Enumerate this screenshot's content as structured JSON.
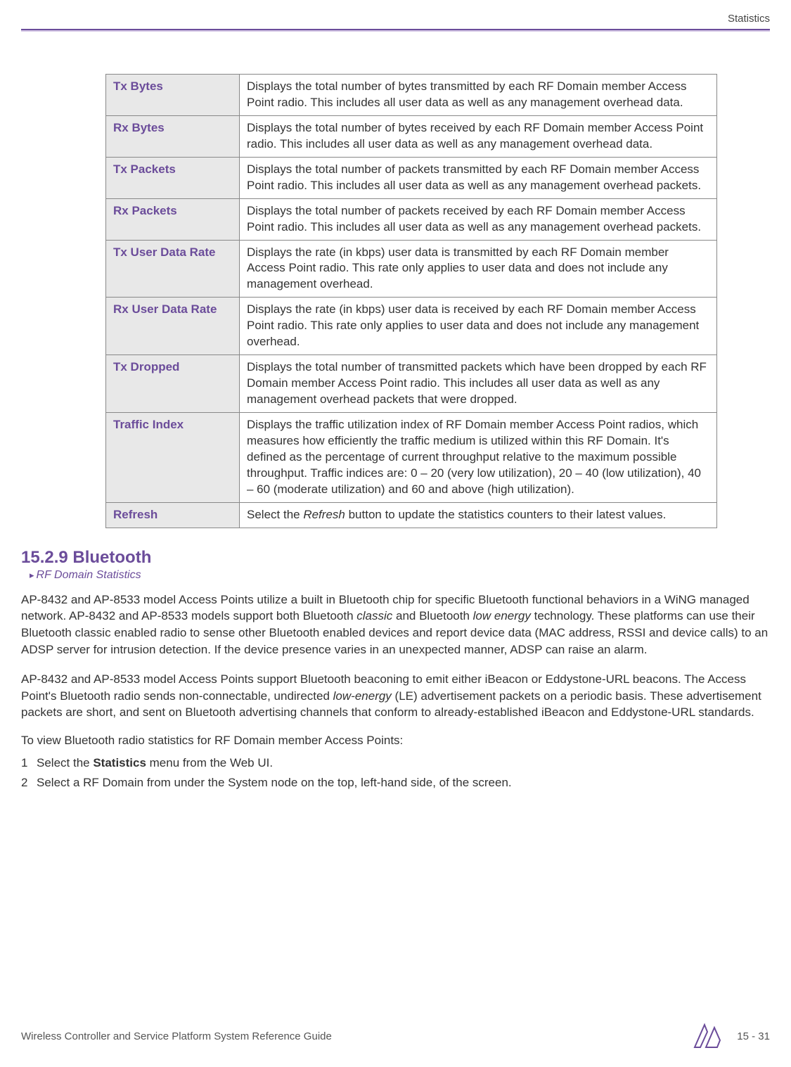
{
  "header": {
    "section_label": "Statistics"
  },
  "table": {
    "rows": [
      {
        "label": "Tx Bytes",
        "desc": "Displays the total number of bytes transmitted by each RF Domain member Access Point radio. This includes all user data as well as any management overhead data."
      },
      {
        "label": "Rx Bytes",
        "desc": "Displays the total number of bytes received by each RF Domain member Access Point radio. This includes all user data as well as any management overhead data."
      },
      {
        "label": "Tx Packets",
        "desc": "Displays the total number of packets transmitted by each RF Domain member Access Point radio. This includes all user data as well as any management overhead packets."
      },
      {
        "label": "Rx Packets",
        "desc": "Displays the total number of packets received by each RF Domain member Access Point radio. This includes all user data as well as any management overhead packets."
      },
      {
        "label": "Tx User Data Rate",
        "desc": "Displays the rate (in kbps) user data is transmitted by each RF Domain member Access Point radio. This rate only applies to user data and does not include any management overhead."
      },
      {
        "label": "Rx User Data Rate",
        "desc": "Displays the rate (in kbps) user data is received by each RF Domain member Access Point radio. This rate only applies to user data and does not include any management overhead."
      },
      {
        "label": "Tx Dropped",
        "desc": "Displays the total number of transmitted packets which have been dropped by each RF Domain member Access Point radio. This includes all user data as well as any management overhead packets that were dropped."
      },
      {
        "label": "Traffic Index",
        "desc": "Displays the traffic utilization index of RF Domain member Access Point radios, which measures how efficiently the traffic medium is utilized within this RF Domain. It's defined as the percentage of current throughput relative to the maximum possible throughput. Traffic indices are: 0 – 20 (very low utilization), 20 – 40 (low utilization), 40 – 60 (moderate utilization) and 60 and above (high utilization)."
      },
      {
        "label": "Refresh",
        "desc_prefix": "Select the ",
        "desc_italic": "Refresh",
        "desc_suffix": " button to update the statistics counters to their latest values."
      }
    ]
  },
  "section": {
    "heading": "15.2.9 Bluetooth",
    "breadcrumb": "RF Domain Statistics"
  },
  "paragraphs": {
    "p1_a": "AP-8432 and AP-8533 model Access Points utilize a built in Bluetooth chip for specific Bluetooth functional behaviors in a WiNG managed network. AP-8432 and AP-8533 models support both Bluetooth ",
    "p1_i1": "classic",
    "p1_b": " and Bluetooth ",
    "p1_i2": "low energy",
    "p1_c": " technology. These platforms can use their Bluetooth classic enabled radio to sense other Bluetooth enabled devices and report device data (MAC address, RSSI and device calls) to an ADSP server for intrusion detection. If the device presence varies in an unexpected manner, ADSP can raise an alarm.",
    "p2_a": "AP-8432 and AP-8533 model Access Points support Bluetooth beaconing to emit either iBeacon or Eddystone-URL beacons. The Access Point's Bluetooth radio sends non-connectable, undirected ",
    "p2_i1": "low-energy",
    "p2_b": " (LE) advertisement packets on a periodic basis. These advertisement packets are short, and sent on Bluetooth advertising channels that conform to already-established iBeacon and Eddystone-URL standards.",
    "intro": "To view Bluetooth radio statistics for RF Domain member Access Points:",
    "step1_num": "1",
    "step1_a": "Select the ",
    "step1_bold": "Statistics",
    "step1_b": " menu from the Web UI.",
    "step2_num": "2",
    "step2_text": "Select a RF Domain from under the System node on the top, left-hand side, of the screen."
  },
  "footer": {
    "left": "Wireless Controller and Service Platform System Reference Guide",
    "page": "15 - 31"
  },
  "colors": {
    "accent": "#6b4c9a",
    "label_bg": "#e8e8e8",
    "border": "#888888",
    "text": "#333333"
  }
}
